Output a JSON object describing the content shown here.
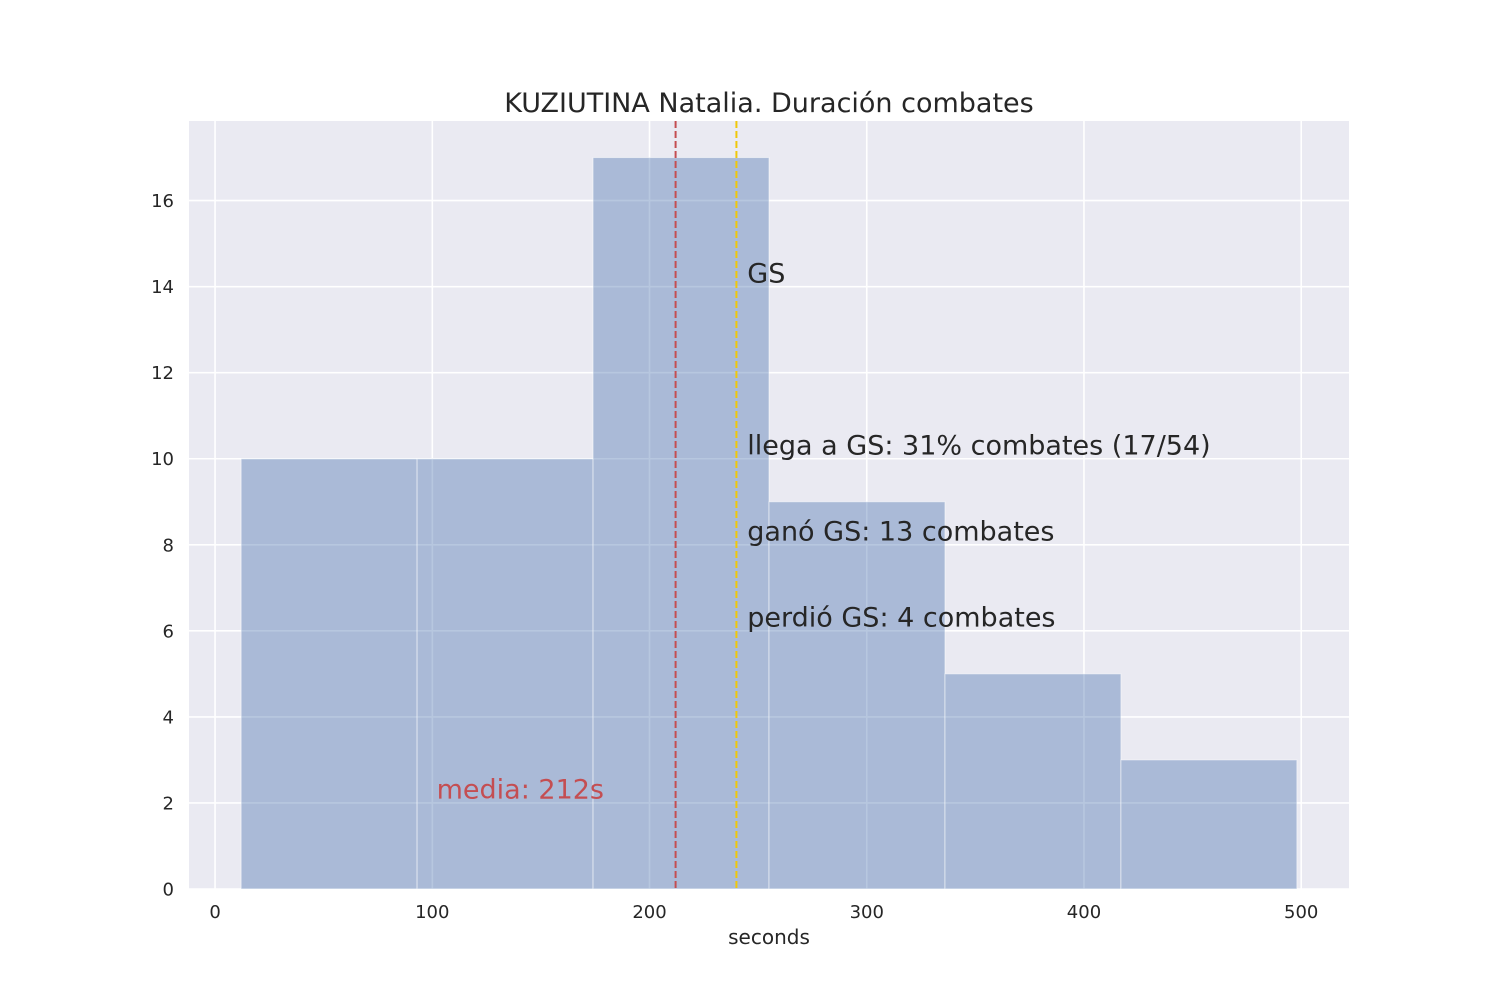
{
  "chart_data": {
    "type": "bar",
    "title": "KUZIUTINA Natalia. Duración combates",
    "xlabel": "seconds",
    "ylabel": "",
    "xlim": [
      -12,
      522
    ],
    "ylim": [
      0,
      17.85
    ],
    "xticks": [
      0,
      100,
      200,
      300,
      400,
      500
    ],
    "yticks": [
      0,
      2,
      4,
      6,
      8,
      10,
      12,
      14,
      16
    ],
    "grid": true,
    "bins": [
      {
        "x0": 12,
        "x1": 93,
        "count": 10
      },
      {
        "x0": 93,
        "x1": 174,
        "count": 10
      },
      {
        "x0": 174,
        "x1": 255,
        "count": 17
      },
      {
        "x0": 255,
        "x1": 336,
        "count": 9
      },
      {
        "x0": 336,
        "x1": 417,
        "count": 5
      },
      {
        "x0": 417,
        "x1": 498,
        "count": 3
      }
    ],
    "vlines": [
      {
        "x": 212,
        "color": "#c44e52",
        "style": "dashed"
      },
      {
        "x": 240,
        "color": "#f0c808",
        "style": "dashed"
      }
    ],
    "annotations": [
      {
        "text": "GS",
        "x": 245,
        "y": 14.1,
        "color": "#262626"
      },
      {
        "text": "llega a GS: 31% combates (17/54)",
        "x": 245,
        "y": 10.1,
        "color": "#262626"
      },
      {
        "text": "ganó GS: 13 combates",
        "x": 245,
        "y": 8.1,
        "color": "#262626"
      },
      {
        "text": "perdió GS: 4 combates",
        "x": 245,
        "y": 6.1,
        "color": "#262626"
      },
      {
        "text": "media: 212s",
        "x": 102,
        "y": 2.1,
        "color": "#c44e52"
      }
    ],
    "colors": {
      "background": "#eaeaf2",
      "grid": "#ffffff",
      "bar_fill": "#4c72b0",
      "bar_opacity": 0.4
    }
  }
}
